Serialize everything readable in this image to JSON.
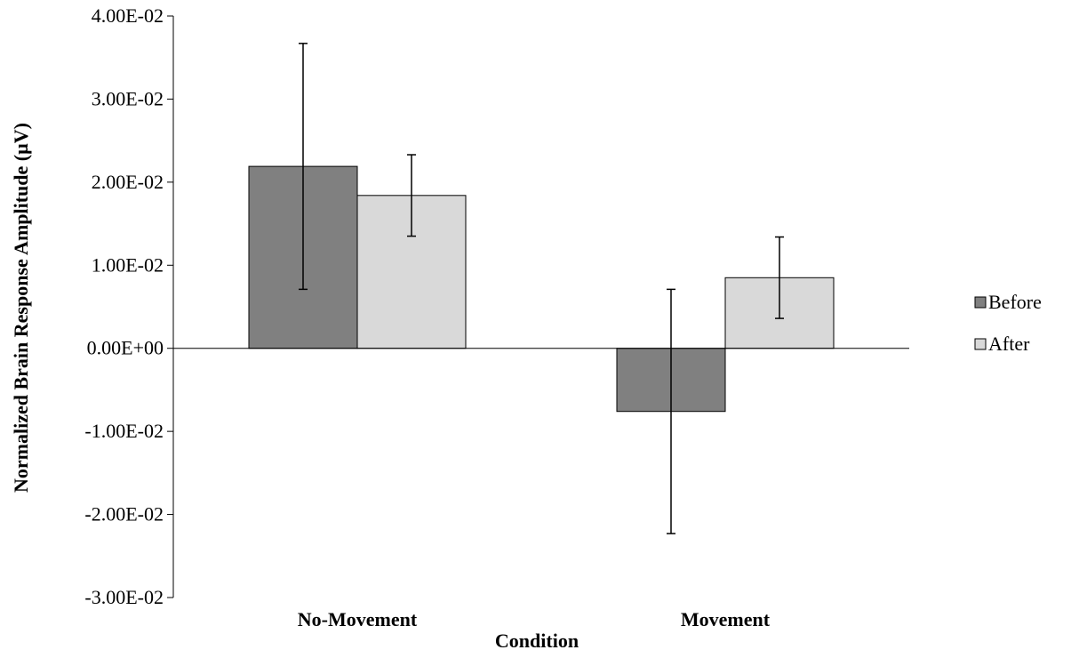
{
  "chart_data": {
    "type": "bar",
    "title": "",
    "xlabel": "Condition",
    "ylabel": "Normalized Brain Response Amplitude (µV)",
    "ylim": [
      -0.03,
      0.04
    ],
    "ytick_values": [
      0.04,
      0.03,
      0.02,
      0.01,
      0.0,
      -0.01,
      -0.02,
      -0.03
    ],
    "ytick_labels": [
      "4.00E-02",
      "3.00E-02",
      "2.00E-02",
      "1.00E-02",
      "0.00E+00",
      "-1.00E-02",
      "-2.00E-02",
      "-3.00E-02"
    ],
    "categories": [
      "No-Movement",
      "Movement"
    ],
    "series": [
      {
        "name": "Before",
        "color": "#808080",
        "values": [
          0.0219,
          -0.0076
        ],
        "errors": [
          0.0148,
          0.0147
        ]
      },
      {
        "name": "After",
        "color": "#d9d9d9",
        "values": [
          0.0184,
          0.0085
        ],
        "errors": [
          0.0049,
          0.0049
        ]
      }
    ],
    "grid": false,
    "legend_position": "right"
  }
}
